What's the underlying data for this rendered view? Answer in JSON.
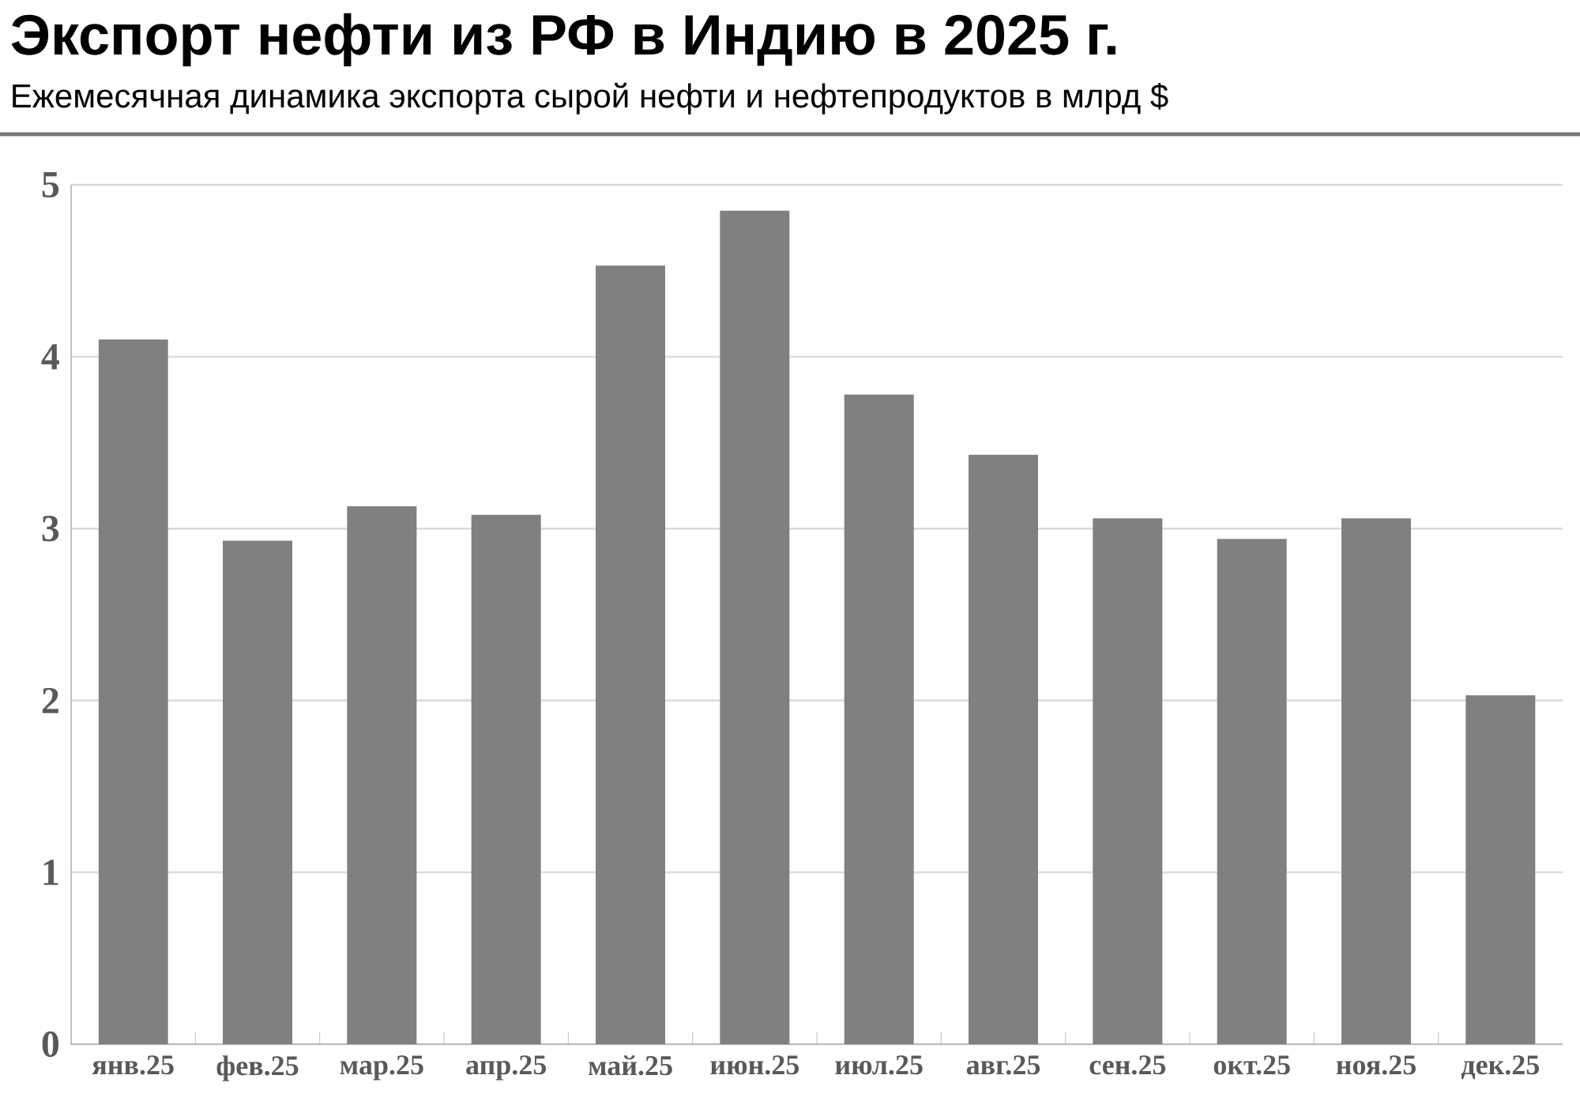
{
  "chart_data": {
    "type": "bar",
    "title": "Экспорт нефти из РФ в Индию в 2025 г.",
    "subtitle": "Ежемесячная динамика экспорта сырой нефти и нефтепродуктов в млрд $",
    "categories": [
      "янв.25",
      "фев.25",
      "мар.25",
      "апр.25",
      "май.25",
      "июн.25",
      "июл.25",
      "авг.25",
      "сен.25",
      "окт.25",
      "ноя.25",
      "дек.25"
    ],
    "values": [
      4.1,
      2.93,
      3.13,
      3.08,
      4.53,
      4.85,
      3.78,
      3.43,
      3.06,
      2.94,
      3.06,
      2.03
    ],
    "color": "#808080",
    "ylim": [
      0,
      5
    ],
    "yticks": [
      0,
      1,
      2,
      3,
      4,
      5
    ],
    "grid": "y"
  }
}
